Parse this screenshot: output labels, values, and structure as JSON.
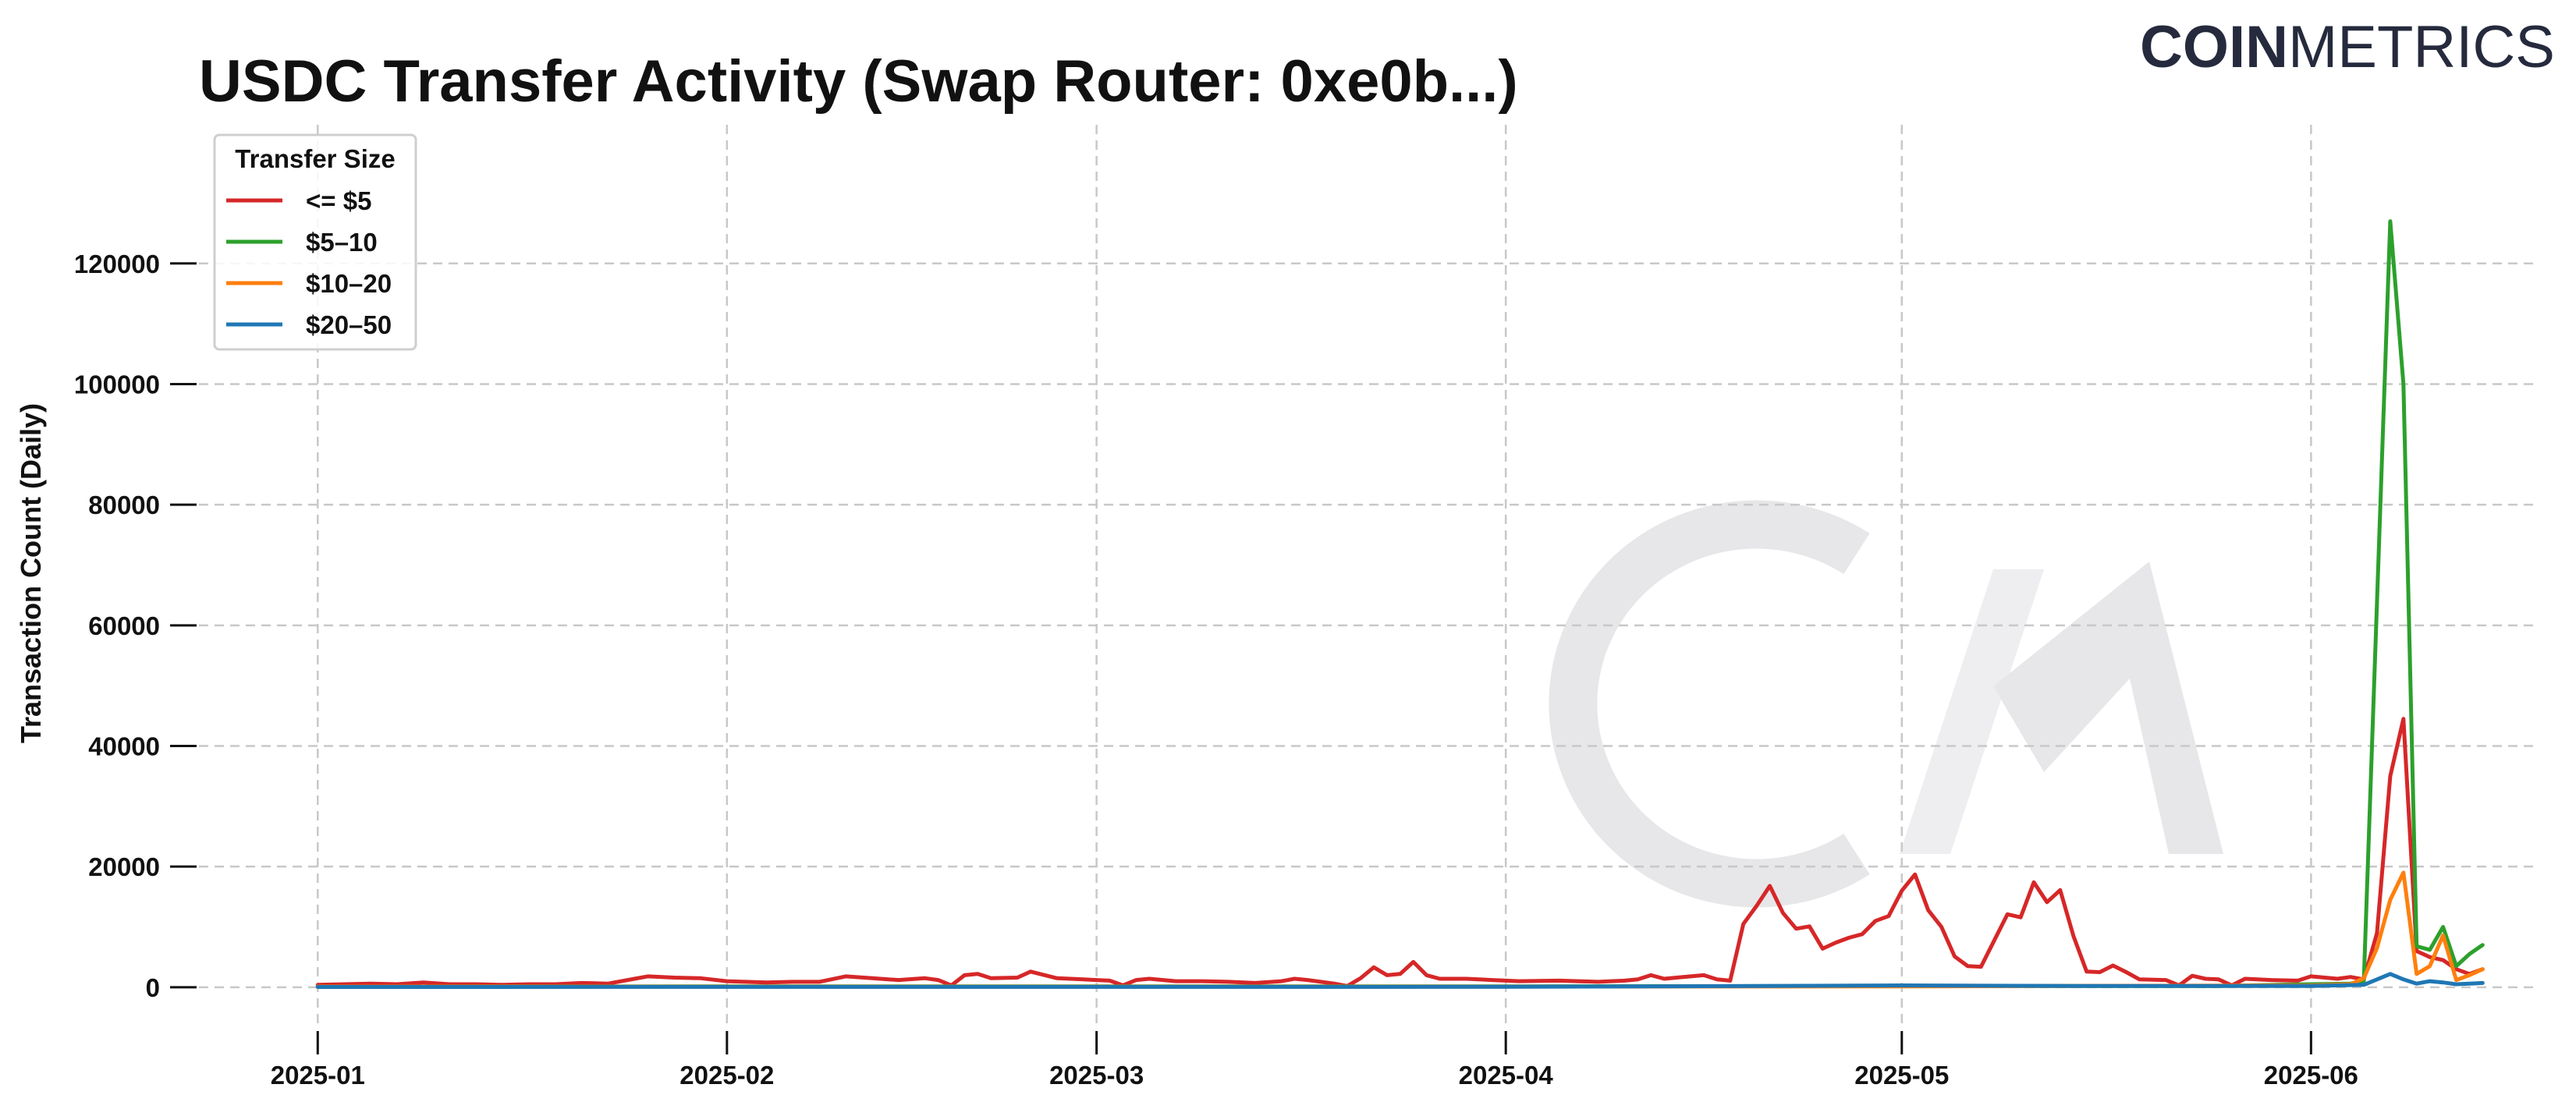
{
  "brand": {
    "part1": "COIN",
    "part2": "METRICS"
  },
  "colors": {
    "le5": "#d62728",
    "b5_10": "#2ca02c",
    "b10_20": "#ff7f0e",
    "b20_50": "#1f77b4",
    "grid": "#c8c8c8",
    "watermark": "#e7e7e9",
    "brand": "#252a3d"
  },
  "chart_data": {
    "type": "line",
    "title": "USDC Transfer Activity (Swap Router: 0xe0b...)",
    "xlabel": "",
    "ylabel": "Transaction Count (Daily)",
    "ylim": [
      -7000,
      132000
    ],
    "xlim": [
      "2024-12-23",
      "2025-06-18"
    ],
    "grid": true,
    "legend": {
      "title": "Transfer Size",
      "placement": "top-left"
    },
    "y_ticks": [
      0,
      20000,
      40000,
      60000,
      80000,
      100000,
      120000
    ],
    "x_ticks": [
      "2025-01",
      "2025-02",
      "2025-03",
      "2025-04",
      "2025-05",
      "2025-06"
    ],
    "x_tick_dates": [
      "2025-01-01",
      "2025-02-01",
      "2025-03-01",
      "2025-04-01",
      "2025-05-01",
      "2025-06-01"
    ],
    "series": [
      {
        "name": "<= $5",
        "points": [
          [
            "2025-01-01",
            400
          ],
          [
            "2025-01-03",
            500
          ],
          [
            "2025-01-05",
            600
          ],
          [
            "2025-01-07",
            500
          ],
          [
            "2025-01-09",
            800
          ],
          [
            "2025-01-11",
            500
          ],
          [
            "2025-01-13",
            500
          ],
          [
            "2025-01-15",
            400
          ],
          [
            "2025-01-17",
            500
          ],
          [
            "2025-01-19",
            500
          ],
          [
            "2025-01-21",
            700
          ],
          [
            "2025-01-23",
            600
          ],
          [
            "2025-01-25",
            1400
          ],
          [
            "2025-01-26",
            1800
          ],
          [
            "2025-01-28",
            1600
          ],
          [
            "2025-01-30",
            1500
          ],
          [
            "2025-02-01",
            1000
          ],
          [
            "2025-02-04",
            800
          ],
          [
            "2025-02-06",
            900
          ],
          [
            "2025-02-08",
            900
          ],
          [
            "2025-02-10",
            1800
          ],
          [
            "2025-02-12",
            1500
          ],
          [
            "2025-02-14",
            1200
          ],
          [
            "2025-02-16",
            1500
          ],
          [
            "2025-02-17",
            1200
          ],
          [
            "2025-02-18",
            300
          ],
          [
            "2025-02-19",
            2000
          ],
          [
            "2025-02-20",
            2200
          ],
          [
            "2025-02-21",
            1500
          ],
          [
            "2025-02-23",
            1600
          ],
          [
            "2025-02-24",
            2600
          ],
          [
            "2025-02-26",
            1500
          ],
          [
            "2025-02-28",
            1300
          ],
          [
            "2025-03-01",
            1200
          ],
          [
            "2025-03-02",
            1100
          ],
          [
            "2025-03-03",
            300
          ],
          [
            "2025-03-04",
            1200
          ],
          [
            "2025-03-05",
            1400
          ],
          [
            "2025-03-07",
            1000
          ],
          [
            "2025-03-09",
            1000
          ],
          [
            "2025-03-11",
            900
          ],
          [
            "2025-03-13",
            700
          ],
          [
            "2025-03-15",
            1000
          ],
          [
            "2025-03-16",
            1400
          ],
          [
            "2025-03-17",
            1200
          ],
          [
            "2025-03-19",
            600
          ],
          [
            "2025-03-20",
            200
          ],
          [
            "2025-03-21",
            1500
          ],
          [
            "2025-03-22",
            3300
          ],
          [
            "2025-03-23",
            2000
          ],
          [
            "2025-03-24",
            2200
          ],
          [
            "2025-03-25",
            4200
          ],
          [
            "2025-03-26",
            2000
          ],
          [
            "2025-03-27",
            1400
          ],
          [
            "2025-03-29",
            1400
          ],
          [
            "2025-03-31",
            1200
          ],
          [
            "2025-04-02",
            1000
          ],
          [
            "2025-04-05",
            1100
          ],
          [
            "2025-04-08",
            900
          ],
          [
            "2025-04-10",
            1100
          ],
          [
            "2025-04-11",
            1300
          ],
          [
            "2025-04-12",
            2000
          ],
          [
            "2025-04-13",
            1400
          ],
          [
            "2025-04-15",
            1800
          ],
          [
            "2025-04-16",
            2000
          ],
          [
            "2025-04-17",
            1300
          ],
          [
            "2025-04-18",
            1100
          ],
          [
            "2025-04-19",
            10500
          ],
          [
            "2025-04-20",
            13500
          ],
          [
            "2025-04-21",
            16800
          ],
          [
            "2025-04-22",
            12300
          ],
          [
            "2025-04-23",
            9700
          ],
          [
            "2025-04-24",
            10100
          ],
          [
            "2025-04-25",
            6400
          ],
          [
            "2025-04-26",
            7400
          ],
          [
            "2025-04-27",
            8200
          ],
          [
            "2025-04-28",
            8800
          ],
          [
            "2025-04-29",
            11000
          ],
          [
            "2025-04-30",
            11800
          ],
          [
            "2025-05-01",
            16000
          ],
          [
            "2025-05-02",
            18700
          ],
          [
            "2025-05-03",
            12800
          ],
          [
            "2025-05-04",
            10000
          ],
          [
            "2025-05-05",
            5100
          ],
          [
            "2025-05-06",
            3500
          ],
          [
            "2025-05-07",
            3400
          ],
          [
            "2025-05-09",
            12100
          ],
          [
            "2025-05-10",
            11600
          ],
          [
            "2025-05-11",
            17400
          ],
          [
            "2025-05-12",
            14100
          ],
          [
            "2025-05-13",
            16100
          ],
          [
            "2025-05-14",
            8500
          ],
          [
            "2025-05-15",
            2600
          ],
          [
            "2025-05-16",
            2500
          ],
          [
            "2025-05-17",
            3600
          ],
          [
            "2025-05-18",
            2500
          ],
          [
            "2025-05-19",
            1300
          ],
          [
            "2025-05-21",
            1200
          ],
          [
            "2025-05-22",
            300
          ],
          [
            "2025-05-23",
            1900
          ],
          [
            "2025-05-24",
            1400
          ],
          [
            "2025-05-25",
            1300
          ],
          [
            "2025-05-26",
            300
          ],
          [
            "2025-05-27",
            1400
          ],
          [
            "2025-05-29",
            1200
          ],
          [
            "2025-05-31",
            1100
          ],
          [
            "2025-06-01",
            1800
          ],
          [
            "2025-06-03",
            1400
          ],
          [
            "2025-06-04",
            1700
          ],
          [
            "2025-06-05",
            1300
          ],
          [
            "2025-06-06",
            9000
          ],
          [
            "2025-06-07",
            35000
          ],
          [
            "2025-06-08",
            44500
          ],
          [
            "2025-06-09",
            6000
          ],
          [
            "2025-06-10",
            5000
          ],
          [
            "2025-06-11",
            4500
          ],
          [
            "2025-06-12",
            3000
          ],
          [
            "2025-06-13",
            2200
          ],
          [
            "2025-06-14",
            3000
          ]
        ]
      },
      {
        "name": "$5–10",
        "points": [
          [
            "2025-01-01",
            100
          ],
          [
            "2025-02-01",
            150
          ],
          [
            "2025-03-01",
            150
          ],
          [
            "2025-04-01",
            150
          ],
          [
            "2025-05-01",
            200
          ],
          [
            "2025-05-25",
            200
          ],
          [
            "2025-06-01",
            500
          ],
          [
            "2025-06-04",
            600
          ],
          [
            "2025-06-05",
            1000
          ],
          [
            "2025-06-07",
            127000
          ],
          [
            "2025-06-08",
            100000
          ],
          [
            "2025-06-09",
            6800
          ],
          [
            "2025-06-10",
            6200
          ],
          [
            "2025-06-11",
            10000
          ],
          [
            "2025-06-12",
            3500
          ],
          [
            "2025-06-13",
            5500
          ],
          [
            "2025-06-14",
            7000
          ]
        ]
      },
      {
        "name": "$10–20",
        "points": [
          [
            "2025-01-01",
            100
          ],
          [
            "2025-02-01",
            100
          ],
          [
            "2025-03-01",
            100
          ],
          [
            "2025-04-01",
            100
          ],
          [
            "2025-05-01",
            150
          ],
          [
            "2025-06-01",
            300
          ],
          [
            "2025-06-04",
            500
          ],
          [
            "2025-06-05",
            1500
          ],
          [
            "2025-06-06",
            6500
          ],
          [
            "2025-06-07",
            14500
          ],
          [
            "2025-06-08",
            19000
          ],
          [
            "2025-06-09",
            2200
          ],
          [
            "2025-06-10",
            3500
          ],
          [
            "2025-06-11",
            8600
          ],
          [
            "2025-06-12",
            1200
          ],
          [
            "2025-06-13",
            2000
          ],
          [
            "2025-06-14",
            3000
          ]
        ]
      },
      {
        "name": "$20–50",
        "points": [
          [
            "2025-01-01",
            50
          ],
          [
            "2025-02-01",
            60
          ],
          [
            "2025-03-01",
            60
          ],
          [
            "2025-04-01",
            70
          ],
          [
            "2025-04-20",
            200
          ],
          [
            "2025-05-01",
            300
          ],
          [
            "2025-05-15",
            200
          ],
          [
            "2025-06-01",
            200
          ],
          [
            "2025-06-05",
            400
          ],
          [
            "2025-06-07",
            2200
          ],
          [
            "2025-06-08",
            1300
          ],
          [
            "2025-06-09",
            600
          ],
          [
            "2025-06-10",
            1000
          ],
          [
            "2025-06-11",
            800
          ],
          [
            "2025-06-12",
            500
          ],
          [
            "2025-06-14",
            700
          ]
        ]
      }
    ]
  }
}
